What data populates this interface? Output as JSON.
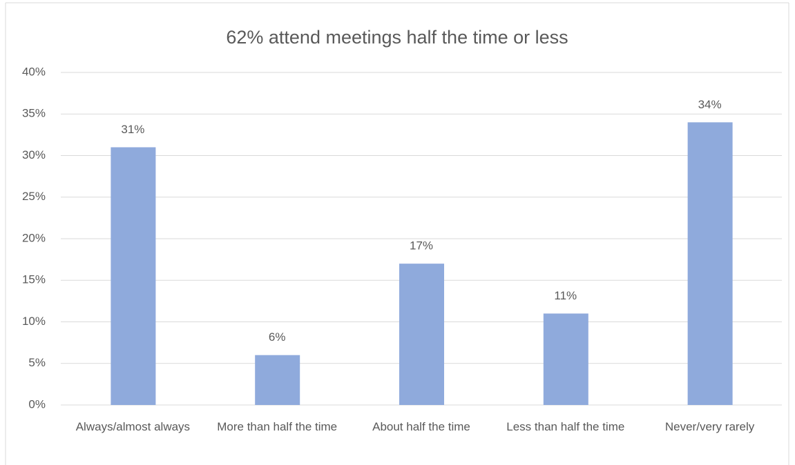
{
  "chart_data": {
    "type": "bar",
    "title": "62% attend meetings half the time or less",
    "categories": [
      "Always/almost always",
      "More than half the time",
      "About half the time",
      "Less than half the time",
      "Never/very rarely"
    ],
    "values": [
      31,
      6,
      17,
      11,
      34
    ],
    "value_labels": [
      "31%",
      "6%",
      "17%",
      "11%",
      "34%"
    ],
    "color": "#8faadc",
    "ylim": [
      0,
      40
    ],
    "yticks": [
      {
        "value": 0,
        "label": "0%"
      },
      {
        "value": 5,
        "label": "5%"
      },
      {
        "value": 10,
        "label": "10%"
      },
      {
        "value": 15,
        "label": "15%"
      },
      {
        "value": 20,
        "label": "20%"
      },
      {
        "value": 25,
        "label": "25%"
      },
      {
        "value": 30,
        "label": "30%"
      },
      {
        "value": 35,
        "label": "35%"
      },
      {
        "value": 40,
        "label": "40%"
      }
    ],
    "grid": true
  }
}
